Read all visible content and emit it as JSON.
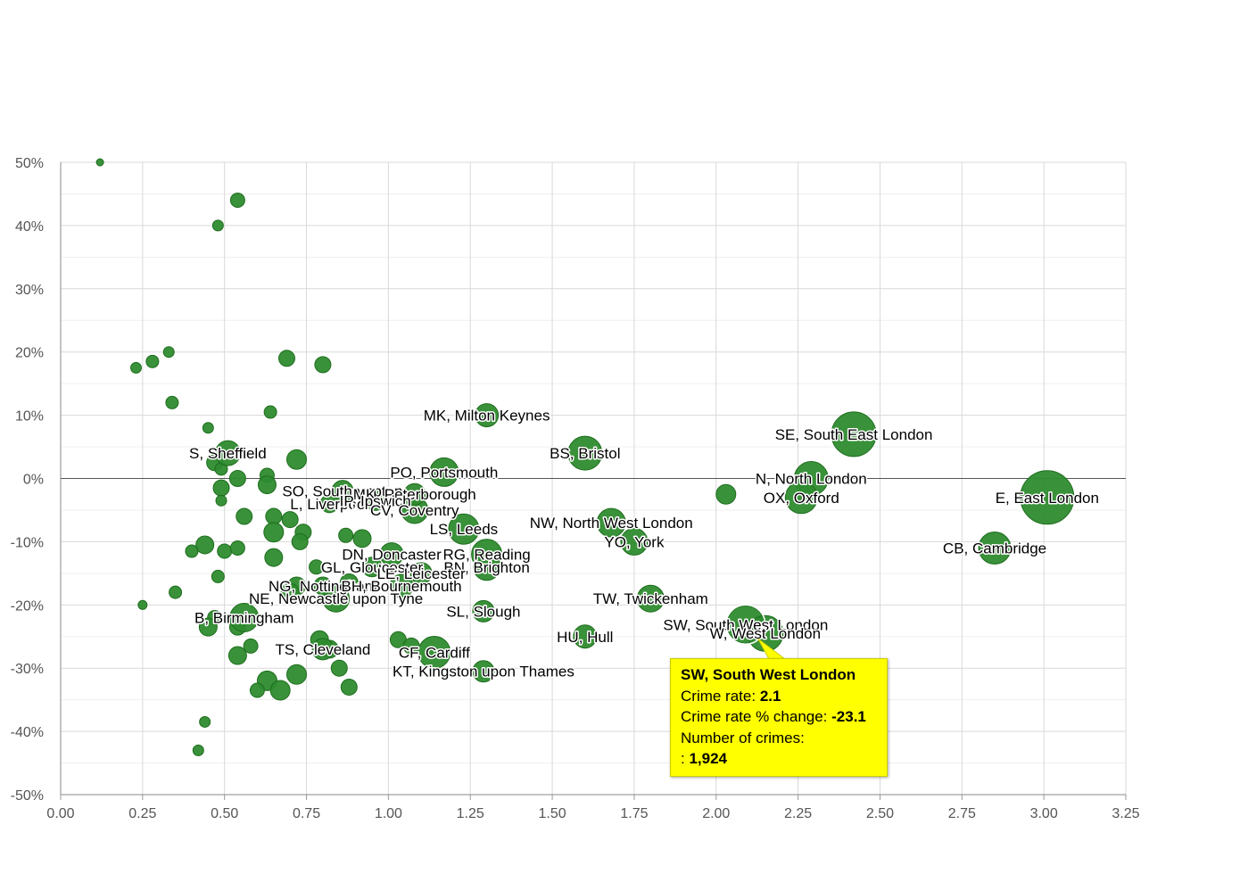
{
  "chart_data": {
    "type": "scatter",
    "subtype": "bubble",
    "title": "",
    "xlabel": "",
    "ylabel": "",
    "xlim": [
      0,
      3.25
    ],
    "ylim": [
      -50,
      50
    ],
    "x_ticks": [
      "0.00",
      "0.25",
      "0.50",
      "0.75",
      "1.00",
      "1.25",
      "1.50",
      "1.75",
      "2.00",
      "2.25",
      "2.50",
      "2.75",
      "3.00",
      "3.25"
    ],
    "y_ticks": [
      "50%",
      "40%",
      "30%",
      "20%",
      "10%",
      "0%",
      "-10%",
      "-20%",
      "-30%",
      "-40%",
      "-50%"
    ],
    "grid": true,
    "legend": "none",
    "colors": {
      "point_fill": "#2e8b2e",
      "point_edge": "#1e6e1e",
      "grid": "#d9d9d9",
      "zero_line": "#555555",
      "tooltip_bg": "#ffff00"
    },
    "labeled_points": [
      {
        "label": "MK, Milton Keynes",
        "x": 1.3,
        "y": 10,
        "r": 13
      },
      {
        "label": "BS, Bristol",
        "x": 1.6,
        "y": 4,
        "r": 19
      },
      {
        "label": "SE, South East London",
        "x": 2.42,
        "y": 7,
        "r": 25
      },
      {
        "label": "N, North London",
        "x": 2.29,
        "y": 0,
        "r": 19
      },
      {
        "label": "OX, Oxford",
        "x": 2.26,
        "y": -3,
        "r": 18
      },
      {
        "label": "E, East London",
        "x": 3.01,
        "y": -3,
        "r": 30
      },
      {
        "label": "CB, Cambridge",
        "x": 2.85,
        "y": -11,
        "r": 18
      },
      {
        "label": "S, Sheffield",
        "x": 0.51,
        "y": 4,
        "r": 14
      },
      {
        "label": "PO, Portsmouth",
        "x": 1.17,
        "y": 1,
        "r": 16
      },
      {
        "label": "SO, Southampton",
        "x": 0.86,
        "y": -2,
        "r": 12
      },
      {
        "label": "MK, Peterborough",
        "x": 1.08,
        "y": -2.5,
        "r": 12
      },
      {
        "label": "L, Liverpool",
        "x": 0.82,
        "y": -4,
        "r": 10
      },
      {
        "label": "IP, Ipswich",
        "x": 0.96,
        "y": -3.5,
        "r": 11
      },
      {
        "label": "CV, Coventry",
        "x": 1.08,
        "y": -5,
        "r": 15
      },
      {
        "label": "NW, North West London",
        "x": 1.68,
        "y": -7,
        "r": 16
      },
      {
        "label": "LS, Leeds",
        "x": 1.23,
        "y": -8,
        "r": 17
      },
      {
        "label": "YO, York",
        "x": 1.75,
        "y": -10,
        "r": 15
      },
      {
        "label": "DN, Doncaster",
        "x": 1.01,
        "y": -12,
        "r": 13
      },
      {
        "label": "RG, Reading",
        "x": 1.3,
        "y": -12,
        "r": 17
      },
      {
        "label": "GL, Gloucester",
        "x": 0.95,
        "y": -14,
        "r": 11
      },
      {
        "label": "BN, Brighton",
        "x": 1.3,
        "y": -14,
        "r": 15
      },
      {
        "label": "LE, Leicester",
        "x": 1.1,
        "y": -15,
        "r": 12
      },
      {
        "label": "NG, Nottingham",
        "x": 0.8,
        "y": -17,
        "r": 10
      },
      {
        "label": "BH, Bournemouth",
        "x": 1.04,
        "y": -17,
        "r": 13
      },
      {
        "label": "NE, Newcastle upon Tyne",
        "x": 0.84,
        "y": -19,
        "r": 15
      },
      {
        "label": "TW, Twickenham",
        "x": 1.8,
        "y": -19,
        "r": 15
      },
      {
        "label": "B, Birmingham",
        "x": 0.56,
        "y": -22,
        "r": 16
      },
      {
        "label": "SL, Slough",
        "x": 1.29,
        "y": -21,
        "r": 12
      },
      {
        "label": "SW, South West London",
        "x": 2.09,
        "y": -23.1,
        "r": 21
      },
      {
        "label": "W, West London",
        "x": 2.15,
        "y": -24.5,
        "r": 20
      },
      {
        "label": "HU, Hull",
        "x": 1.6,
        "y": -25,
        "r": 13
      },
      {
        "label": "TS, Cleveland",
        "x": 0.8,
        "y": -27,
        "r": 12
      },
      {
        "label": "CF, Cardiff",
        "x": 1.14,
        "y": -27.5,
        "r": 18
      },
      {
        "label": "KT, Kingston upon Thames",
        "x": 1.29,
        "y": -30.5,
        "r": 12
      }
    ],
    "unlabeled_points": [
      {
        "x": 0.12,
        "y": 50,
        "r": 4
      },
      {
        "x": 0.54,
        "y": 44,
        "r": 8
      },
      {
        "x": 0.48,
        "y": 40,
        "r": 6
      },
      {
        "x": 0.23,
        "y": 17.5,
        "r": 6
      },
      {
        "x": 0.28,
        "y": 18.5,
        "r": 7
      },
      {
        "x": 0.33,
        "y": 20,
        "r": 6
      },
      {
        "x": 0.69,
        "y": 19,
        "r": 9
      },
      {
        "x": 0.8,
        "y": 18,
        "r": 9
      },
      {
        "x": 0.34,
        "y": 12,
        "r": 7
      },
      {
        "x": 0.64,
        "y": 10.5,
        "r": 7
      },
      {
        "x": 0.45,
        "y": 8,
        "r": 6
      },
      {
        "x": 0.72,
        "y": 3,
        "r": 11
      },
      {
        "x": 0.47,
        "y": 2.5,
        "r": 9
      },
      {
        "x": 0.49,
        "y": 1.5,
        "r": 7
      },
      {
        "x": 0.54,
        "y": 0,
        "r": 9
      },
      {
        "x": 0.63,
        "y": 0.5,
        "r": 8
      },
      {
        "x": 0.63,
        "y": -1,
        "r": 10
      },
      {
        "x": 0.49,
        "y": -1.5,
        "r": 9
      },
      {
        "x": 0.49,
        "y": -3.5,
        "r": 6
      },
      {
        "x": 0.56,
        "y": -6,
        "r": 9
      },
      {
        "x": 0.65,
        "y": -6,
        "r": 9
      },
      {
        "x": 0.7,
        "y": -6.5,
        "r": 9
      },
      {
        "x": 0.65,
        "y": -8.5,
        "r": 11
      },
      {
        "x": 0.74,
        "y": -8.5,
        "r": 9
      },
      {
        "x": 0.73,
        "y": -10,
        "r": 9
      },
      {
        "x": 0.87,
        "y": -9,
        "r": 8
      },
      {
        "x": 0.92,
        "y": -9.5,
        "r": 10
      },
      {
        "x": 0.44,
        "y": -10.5,
        "r": 10
      },
      {
        "x": 0.4,
        "y": -11.5,
        "r": 7
      },
      {
        "x": 0.5,
        "y": -11.5,
        "r": 8
      },
      {
        "x": 0.54,
        "y": -11,
        "r": 8
      },
      {
        "x": 0.65,
        "y": -12.5,
        "r": 10
      },
      {
        "x": 0.78,
        "y": -14,
        "r": 8
      },
      {
        "x": 0.48,
        "y": -15.5,
        "r": 7
      },
      {
        "x": 0.35,
        "y": -18,
        "r": 7
      },
      {
        "x": 0.25,
        "y": -20,
        "r": 5
      },
      {
        "x": 0.72,
        "y": -17,
        "r": 10
      },
      {
        "x": 0.7,
        "y": -18,
        "r": 10
      },
      {
        "x": 0.88,
        "y": -16.5,
        "r": 10
      },
      {
        "x": 0.47,
        "y": -22,
        "r": 8
      },
      {
        "x": 0.45,
        "y": -23.5,
        "r": 10
      },
      {
        "x": 0.54,
        "y": -23.5,
        "r": 9
      },
      {
        "x": 0.58,
        "y": -26.5,
        "r": 8
      },
      {
        "x": 0.54,
        "y": -28,
        "r": 10
      },
      {
        "x": 0.79,
        "y": -25.5,
        "r": 10
      },
      {
        "x": 0.82,
        "y": -27,
        "r": 10
      },
      {
        "x": 1.03,
        "y": -25.5,
        "r": 9
      },
      {
        "x": 1.07,
        "y": -26.5,
        "r": 9
      },
      {
        "x": 0.85,
        "y": -30,
        "r": 9
      },
      {
        "x": 0.72,
        "y": -31,
        "r": 11
      },
      {
        "x": 0.63,
        "y": -32,
        "r": 11
      },
      {
        "x": 0.6,
        "y": -33.5,
        "r": 8
      },
      {
        "x": 0.67,
        "y": -33.5,
        "r": 11
      },
      {
        "x": 0.88,
        "y": -33,
        "r": 9
      },
      {
        "x": 0.44,
        "y": -38.5,
        "r": 6
      },
      {
        "x": 0.42,
        "y": -43,
        "r": 6
      },
      {
        "x": 2.03,
        "y": -2.5,
        "r": 11
      }
    ],
    "tooltip": {
      "title": "SW, South West London",
      "crime_rate_label": "Crime rate:",
      "crime_rate_value": "2.1",
      "change_label": "Crime rate % change:",
      "change_value": "-23.1",
      "crimes_label": "Number of crimes:",
      "crimes_prefix": ":",
      "crimes_value": "1,924"
    }
  }
}
